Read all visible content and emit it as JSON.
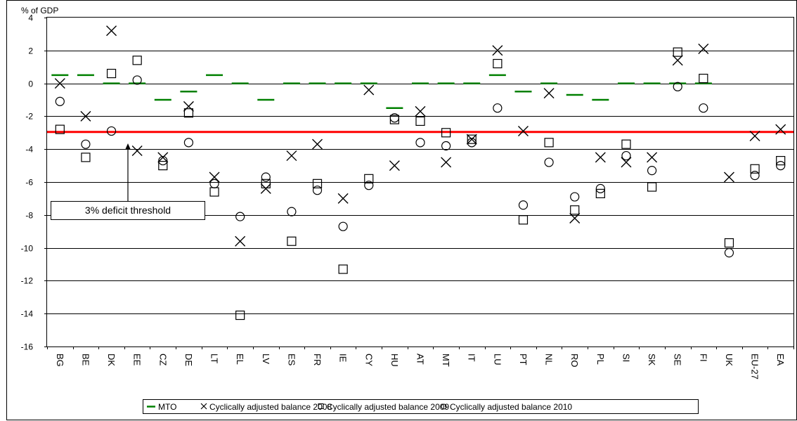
{
  "chart_data": {
    "type": "scatter",
    "unit_label": "% of GDP",
    "ylim": [
      -16,
      4
    ],
    "yticks": [
      4,
      2,
      0,
      -2,
      -4,
      -6,
      -8,
      -10,
      -12,
      -14,
      -16
    ],
    "grid": true,
    "legend_position": "bottom",
    "categories": [
      "BG",
      "BE",
      "DK",
      "EE",
      "CZ",
      "DE",
      "LT",
      "EL",
      "LV",
      "ES",
      "FR",
      "IE",
      "CY",
      "HU",
      "AT",
      "MT",
      "IT",
      "LU",
      "PT",
      "NL",
      "RO",
      "PL",
      "SI",
      "SK",
      "SE",
      "FI",
      "UK",
      "EU-27",
      "EA"
    ],
    "series": [
      {
        "name": "MTO",
        "marker": "dash",
        "values": [
          0.5,
          0.5,
          0,
          0,
          -1,
          -0.5,
          0.5,
          0,
          -1,
          0,
          0,
          0,
          0,
          -1.5,
          0,
          0,
          0,
          0.5,
          -0.5,
          0,
          -0.7,
          -1,
          0,
          0,
          0,
          0,
          null,
          null,
          null
        ]
      },
      {
        "name": "Cyclically adjusted balance 2008",
        "marker": "x",
        "values": [
          0,
          -2,
          3.2,
          -4.1,
          -4.5,
          -1.4,
          -5.7,
          -9.6,
          -6.4,
          -4.4,
          -3.7,
          -7,
          -0.4,
          -5,
          -1.7,
          -4.8,
          -3.4,
          2,
          -2.9,
          -0.6,
          -8.2,
          -4.5,
          -4.8,
          -4.5,
          1.4,
          2.1,
          -5.7,
          -3.2,
          -2.8
        ]
      },
      {
        "name": "Cyclically adjusted balance 2009",
        "marker": "square",
        "values": [
          -2.8,
          -4.5,
          0.6,
          1.4,
          -5,
          -1.8,
          -6.6,
          -14.1,
          -6.1,
          -9.6,
          -6.1,
          -11.3,
          -5.8,
          -2.2,
          -2.3,
          -3,
          -3.4,
          1.2,
          -8.3,
          -3.6,
          -7.7,
          -6.7,
          -3.7,
          -6.3,
          1.9,
          0.3,
          -9.7,
          -5.2,
          -4.7
        ]
      },
      {
        "name": "Cyclically adjusted balance 2010",
        "marker": "circle",
        "values": [
          -1.1,
          -3.7,
          -2.9,
          0.2,
          -4.7,
          -3.6,
          -6.1,
          -8.1,
          -5.7,
          -7.8,
          -6.5,
          -8.7,
          -6.2,
          -2.1,
          -3.6,
          -3.8,
          -3.6,
          -1.5,
          -7.4,
          -4.8,
          -6.9,
          -6.4,
          -4.4,
          -5.3,
          -0.2,
          -1.5,
          -10.3,
          -5.6,
          -5
        ]
      }
    ],
    "reference_line": {
      "value": -3,
      "color": "#ff0000"
    },
    "annotation": {
      "text": "3% deficit threshold"
    }
  },
  "colors": {
    "mto": "#008000",
    "markers": "#000000",
    "threshold": "#ff0000",
    "grid": "#000000"
  }
}
